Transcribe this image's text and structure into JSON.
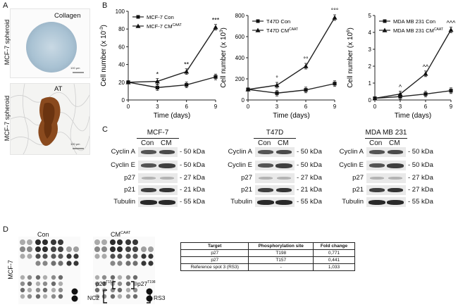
{
  "panels": {
    "a": "A",
    "b": "B",
    "c": "C",
    "d": "D"
  },
  "panel_a": {
    "top_title": "Collagen",
    "bottom_title": "AT",
    "side_label": "MCF-7 spheroid",
    "scale_bar": "100 µm"
  },
  "chart_data": [
    {
      "type": "line",
      "ylabel": "Cell number (x 10",
      "ylabel_exp": "-3",
      "xlabel": "Time (days)",
      "x": [
        0,
        3,
        6,
        9
      ],
      "xlim": [
        0,
        9
      ],
      "ylim": [
        0,
        100
      ],
      "yticks": [
        0,
        20,
        40,
        60,
        80,
        100
      ],
      "series": [
        {
          "name": "MCF-7 Con",
          "marker": "square",
          "values": [
            20,
            14,
            17,
            26
          ]
        },
        {
          "name": "MCF-7 CM",
          "name_sup": "CAAT",
          "marker": "triangle",
          "values": [
            20,
            21,
            32,
            82
          ]
        }
      ],
      "annotations": [
        "",
        "*",
        "**",
        "***"
      ]
    },
    {
      "type": "line",
      "ylabel": "Cell number (x 10",
      "ylabel_exp": "3",
      "xlabel": "Time (days)",
      "x": [
        0,
        3,
        6,
        9
      ],
      "xlim": [
        0,
        9
      ],
      "ylim": [
        0,
        800
      ],
      "yticks": [
        0,
        200,
        400,
        600,
        800
      ],
      "series": [
        {
          "name": "T47D Con",
          "marker": "square",
          "values": [
            100,
            65,
            95,
            155
          ]
        },
        {
          "name": "T47D CM",
          "name_sup": "CAAT",
          "marker": "triangle",
          "values": [
            100,
            140,
            320,
            780
          ]
        }
      ],
      "annotations": [
        "",
        "°",
        "°°",
        "°°°"
      ]
    },
    {
      "type": "line",
      "ylabel": "Cell number (x 10",
      "ylabel_exp": "6",
      "xlabel": "Time (days)",
      "x": [
        0,
        3,
        6,
        9
      ],
      "xlim": [
        0,
        9
      ],
      "ylim": [
        0,
        5
      ],
      "yticks": [
        0,
        1,
        2,
        3,
        4,
        5
      ],
      "series": [
        {
          "name": "MDA MB 231 Con",
          "marker": "square",
          "values": [
            0.1,
            0.2,
            0.35,
            0.55
          ]
        },
        {
          "name": "MDA MB 231 CM",
          "name_sup": "CAAT",
          "marker": "triangle",
          "values": [
            0.1,
            0.35,
            1.55,
            4.15
          ]
        }
      ],
      "annotations": [
        "",
        "^",
        "^^",
        "^^^"
      ]
    }
  ],
  "western": {
    "blots": [
      {
        "title": "MCF-7",
        "head_con": "Con",
        "head_cm": "CM",
        "rows": [
          "Cyclin A",
          "Cyclin E",
          "p27",
          "p21",
          "Tubulin"
        ],
        "kda": [
          "- 50 kDa",
          "- 50 kDa",
          "- 27 kDa",
          "- 21 kDa",
          "- 55 kDa"
        ]
      },
      {
        "title": "T47D",
        "head_con": "Con",
        "head_cm": "CM",
        "rows": [
          "Cyclin A",
          "Cyclin E",
          "p27",
          "p21",
          "Tubulin"
        ],
        "kda": [
          "- 50 kDa",
          "- 50 kDa",
          "- 27 kDa",
          "- 21 kDa",
          "- 55 kDa"
        ]
      },
      {
        "title": "MDA MB 231",
        "head_con": "Con",
        "head_cm": "CM",
        "rows": [
          "Cyclin A",
          "Cyclin E",
          "p27",
          "p21",
          "Tubulin"
        ],
        "kda": [
          "- 50 kDa",
          "- 50 kDa",
          "- 27 kDa",
          "- 27 kDa",
          "- 55 kDa"
        ]
      }
    ]
  },
  "panel_d": {
    "side_label": "MCF-7",
    "array_con": "Con",
    "array_cm": "CM",
    "array_cm_sup": "CAAT",
    "label_p27_t157": "p27",
    "label_p27_t157_sup": "T157",
    "label_p27_t198": "p27",
    "label_p27_t198_sup": "T198",
    "label_nc2": "NC2",
    "label_rs3": "RS3",
    "table_headers": [
      "Target",
      "Phosphorylation site",
      "Fold change"
    ],
    "table_rows": [
      [
        "p27",
        "T198",
        "0,771"
      ],
      [
        "p27",
        "T157",
        "0,441"
      ],
      [
        "Reference spot 3 (RS3)",
        "-",
        "1,033"
      ]
    ]
  }
}
